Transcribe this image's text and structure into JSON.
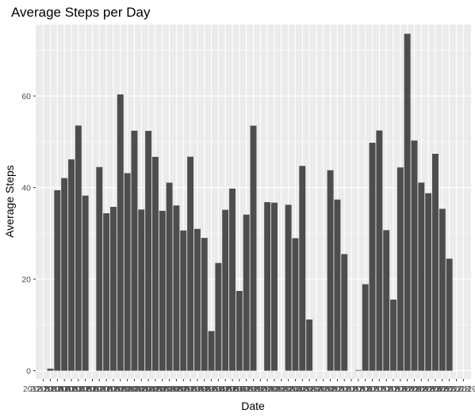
{
  "chart_data": {
    "type": "bar",
    "title": "Average Steps per Day",
    "xlabel": "Date",
    "ylabel": "Average Steps",
    "ylim": [
      -1.8,
      75.6
    ],
    "yticks": [
      0,
      20,
      40,
      60
    ],
    "grid": true,
    "bar_color": "#4d4d4d",
    "panel_color": "#ebebeb",
    "categories": [
      "2012-10-01",
      "2012-10-02",
      "2012-10-03",
      "2012-10-04",
      "2012-10-05",
      "2012-10-06",
      "2012-10-07",
      "2012-10-08",
      "2012-10-09",
      "2012-10-10",
      "2012-10-11",
      "2012-10-12",
      "2012-10-13",
      "2012-10-14",
      "2012-10-15",
      "2012-10-16",
      "2012-10-17",
      "2012-10-18",
      "2012-10-19",
      "2012-10-20",
      "2012-10-21",
      "2012-10-22",
      "2012-10-23",
      "2012-10-24",
      "2012-10-25",
      "2012-10-26",
      "2012-10-27",
      "2012-10-28",
      "2012-10-29",
      "2012-10-30",
      "2012-10-31",
      "2012-11-01",
      "2012-11-02",
      "2012-11-03",
      "2012-11-04",
      "2012-11-05",
      "2012-11-06",
      "2012-11-07",
      "2012-11-08",
      "2012-11-09",
      "2012-11-10",
      "2012-11-11",
      "2012-11-12",
      "2012-11-13",
      "2012-11-14",
      "2012-11-15",
      "2012-11-16",
      "2012-11-17",
      "2012-11-18",
      "2012-11-19",
      "2012-11-20",
      "2012-11-21",
      "2012-11-22",
      "2012-11-23",
      "2012-11-24",
      "2012-11-25",
      "2012-11-26",
      "2012-11-27",
      "2012-11-28",
      "2012-11-29",
      "2012-11-30"
    ],
    "values": [
      null,
      0.44,
      39.42,
      42.07,
      46.16,
      53.54,
      38.25,
      null,
      44.48,
      34.38,
      35.78,
      60.35,
      43.15,
      52.42,
      35.2,
      52.38,
      46.71,
      34.92,
      41.07,
      36.09,
      30.63,
      46.74,
      30.97,
      29.01,
      8.65,
      23.53,
      35.14,
      39.78,
      17.42,
      34.09,
      53.52,
      null,
      36.81,
      36.7,
      null,
      36.25,
      28.94,
      44.73,
      11.18,
      null,
      null,
      43.78,
      37.38,
      25.47,
      null,
      0.14,
      18.89,
      49.79,
      52.47,
      30.7,
      15.53,
      44.4,
      73.59,
      50.27,
      41.09,
      38.76,
      47.38,
      35.36,
      24.47,
      null,
      null
    ]
  }
}
